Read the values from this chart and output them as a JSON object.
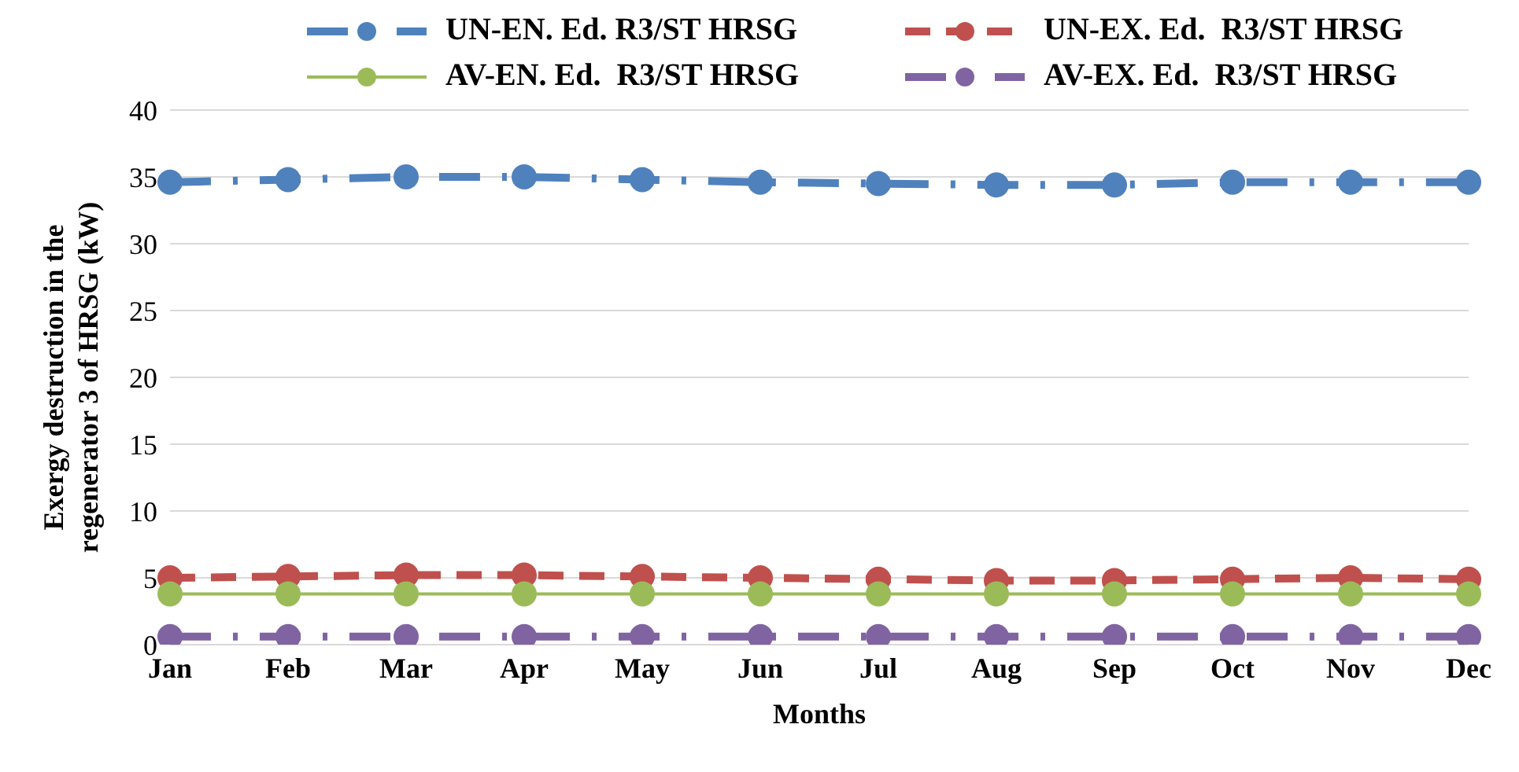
{
  "chart_data": {
    "type": "line",
    "xlabel": "Months",
    "ylabel": "Exergy destruction in the regenerator 3 of HRSG (kW)",
    "categories": [
      "Jan",
      "Feb",
      "Mar",
      "Apr",
      "May",
      "Jun",
      "Jul",
      "Aug",
      "Sep",
      "Oct",
      "Nov",
      "Dec"
    ],
    "series": [
      {
        "name": "UN-EN. Ed. R3/ST HRSG",
        "color": "#4f81bd",
        "line_style": "dashdot",
        "values": [
          34.6,
          34.8,
          35.0,
          35.0,
          34.8,
          34.6,
          34.5,
          34.4,
          34.4,
          34.6,
          34.6,
          34.6
        ]
      },
      {
        "name": "UN-EX. Ed.  R3/ST HRSG",
        "color": "#c0504d",
        "line_style": "dashed",
        "values": [
          5.0,
          5.1,
          5.2,
          5.2,
          5.1,
          5.0,
          4.9,
          4.8,
          4.8,
          4.9,
          5.0,
          4.9
        ]
      },
      {
        "name": "AV-EN. Ed.  R3/ST HRSG",
        "color": "#9bbb59",
        "line_style": "solid",
        "values": [
          3.8,
          3.8,
          3.8,
          3.8,
          3.8,
          3.8,
          3.8,
          3.8,
          3.8,
          3.8,
          3.8,
          3.8
        ]
      },
      {
        "name": "AV-EX. Ed.  R3/ST HRSG",
        "color": "#8064a2",
        "line_style": "dashdot",
        "values": [
          0.6,
          0.6,
          0.6,
          0.6,
          0.6,
          0.6,
          0.6,
          0.6,
          0.6,
          0.6,
          0.6,
          0.6
        ]
      }
    ],
    "ylim": [
      0,
      40
    ],
    "yticks": [
      0,
      5,
      10,
      15,
      20,
      25,
      30,
      35,
      40
    ],
    "grid": "y",
    "legend": "top",
    "marker": "circle"
  }
}
